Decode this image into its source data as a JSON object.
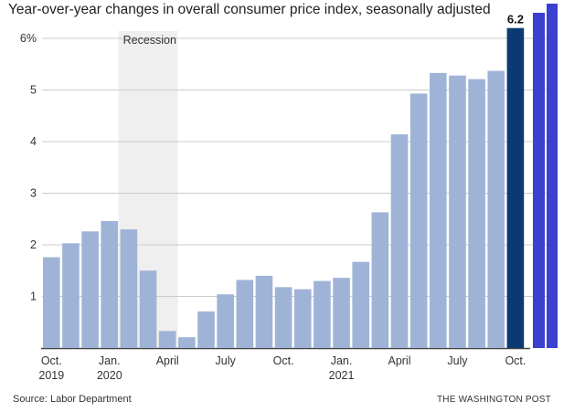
{
  "chart_data": {
    "type": "bar",
    "title": "Year-over-year changes in overall consumer price index, seasonally adjusted",
    "xlabel": "",
    "ylabel": "",
    "ylim": [
      0,
      6
    ],
    "y_ticks": [
      1,
      2,
      3,
      4,
      5,
      6
    ],
    "y_tick_labels": [
      "1",
      "2",
      "3",
      "4",
      "5",
      "6%"
    ],
    "grid": true,
    "categories": [
      "Oct. 2019",
      "Nov. 2019",
      "Dec. 2019",
      "Jan. 2020",
      "Feb. 2020",
      "Mar. 2020",
      "Apr. 2020",
      "May 2020",
      "Jun. 2020",
      "Jul. 2020",
      "Aug. 2020",
      "Sep. 2020",
      "Oct. 2020",
      "Nov. 2020",
      "Dec. 2020",
      "Jan. 2021",
      "Feb. 2021",
      "Mar. 2021",
      "Apr. 2021",
      "May 2021",
      "Jun. 2021",
      "Jul. 2021",
      "Aug. 2021",
      "Sep. 2021",
      "Oct. 2021"
    ],
    "values": [
      1.76,
      2.03,
      2.26,
      2.46,
      2.3,
      1.5,
      0.33,
      0.21,
      0.71,
      1.04,
      1.32,
      1.4,
      1.18,
      1.14,
      1.3,
      1.36,
      1.67,
      2.63,
      4.14,
      4.93,
      5.33,
      5.28,
      5.21,
      5.37,
      6.2
    ],
    "highlight_index": 24,
    "data_labels": [
      {
        "index": 24,
        "text": "6.2"
      }
    ],
    "x_tick_labels": [
      {
        "index": 0,
        "lines": [
          "Oct.",
          "2019"
        ]
      },
      {
        "index": 3,
        "lines": [
          "Jan.",
          "2020"
        ]
      },
      {
        "index": 6,
        "lines": [
          "April"
        ]
      },
      {
        "index": 9,
        "lines": [
          "July"
        ]
      },
      {
        "index": 12,
        "lines": [
          "Oct."
        ]
      },
      {
        "index": 15,
        "lines": [
          "Jan.",
          "2021"
        ]
      },
      {
        "index": 18,
        "lines": [
          "April"
        ]
      },
      {
        "index": 21,
        "lines": [
          "July"
        ]
      },
      {
        "index": 24,
        "lines": [
          "Oct."
        ]
      }
    ],
    "annotations": [
      {
        "text": "Recession",
        "start_index": 4,
        "end_index": 6
      }
    ],
    "colors": {
      "bar": "#9fb3d6",
      "highlight": "#0b3a73",
      "edge_stripe": "#3a40cf",
      "recession_band": "#efefef",
      "grid": "#cccccc",
      "axis": "#444444"
    }
  },
  "footer": {
    "source": "Source: Labor Department",
    "credit": "THE WASHINGTON POST"
  }
}
